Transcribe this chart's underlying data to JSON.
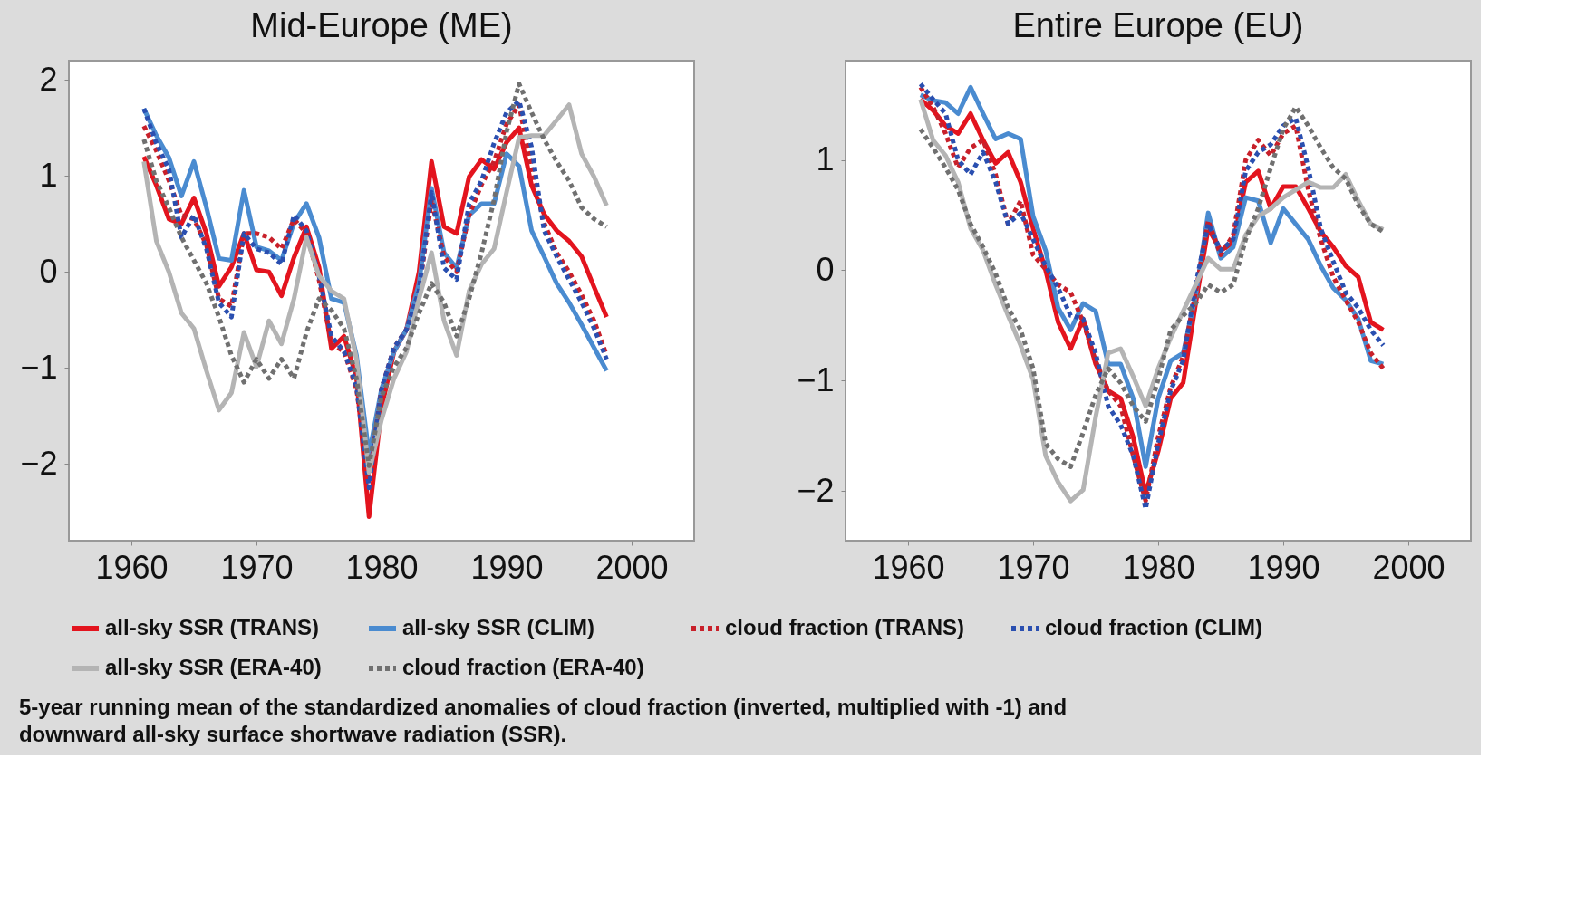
{
  "chart_data": [
    {
      "type": "line",
      "title": "Mid-Europe (ME)",
      "x": [
        1961,
        1962,
        1963,
        1964,
        1965,
        1966,
        1967,
        1968,
        1969,
        1970,
        1971,
        1972,
        1973,
        1974,
        1975,
        1976,
        1977,
        1978,
        1979,
        1980,
        1981,
        1982,
        1983,
        1984,
        1985,
        1986,
        1987,
        1988,
        1989,
        1990,
        1991,
        1992,
        1993,
        1994,
        1995,
        1996,
        1997,
        1998
      ],
      "series": [
        {
          "name": "all-sky SSR (TRANS)",
          "color": "#e3141e",
          "line_style": "solid",
          "values": [
            1.2,
            0.9,
            0.55,
            0.5,
            0.77,
            0.4,
            -0.15,
            0.05,
            0.4,
            0.02,
            0,
            -0.25,
            0.15,
            0.47,
            0.05,
            -0.8,
            -0.67,
            -1.1,
            -2.55,
            -1.42,
            -0.83,
            -0.6,
            0,
            1.15,
            0.47,
            0.4,
            0.99,
            1.17,
            1.07,
            1.35,
            1.5,
            0.9,
            0.6,
            0.43,
            0.32,
            0.16,
            -0.16,
            -0.47
          ]
        },
        {
          "name": "all-sky SSR (CLIM)",
          "color": "#4a8bd0",
          "line_style": "solid",
          "values": [
            1.7,
            1.42,
            1.19,
            0.79,
            1.15,
            0.67,
            0.14,
            0.12,
            0.85,
            0.26,
            0.22,
            0.12,
            0.51,
            0.71,
            0.36,
            -0.28,
            -0.32,
            -0.87,
            -1.9,
            -1.22,
            -0.83,
            -0.6,
            -0.12,
            0.87,
            0.2,
            0.04,
            0.59,
            0.71,
            0.71,
            1.23,
            1.1,
            0.43,
            0.16,
            -0.12,
            -0.32,
            -0.55,
            -0.79,
            -1.03
          ]
        },
        {
          "name": "cloud fraction (TRANS)",
          "color": "#c8202a",
          "line_style": "dotted",
          "values": [
            1.52,
            1.26,
            0.95,
            0.59,
            0.55,
            0.28,
            -0.28,
            -0.36,
            0.4,
            0.4,
            0.36,
            0.24,
            0.55,
            0.4,
            -0.08,
            -0.75,
            -0.83,
            -1.22,
            -2.17,
            -1.22,
            -0.79,
            -0.6,
            -0.2,
            0.75,
            0.16,
            0,
            0.59,
            0.91,
            1.15,
            1.54,
            1.74,
            1.07,
            0.51,
            0.2,
            0,
            -0.24,
            -0.51,
            -0.87
          ]
        },
        {
          "name": "cloud fraction (CLIM)",
          "color": "#2a4fb0",
          "line_style": "dotted",
          "values": [
            1.7,
            1.34,
            1.07,
            0.36,
            0.59,
            0.24,
            -0.32,
            -0.47,
            0.4,
            0.24,
            0.2,
            0.08,
            0.59,
            0.43,
            -0.04,
            -0.67,
            -0.83,
            -1.19,
            -2.25,
            -1.22,
            -0.79,
            -0.6,
            -0.2,
            0.83,
            0.04,
            -0.08,
            0.71,
            0.95,
            1.34,
            1.66,
            1.78,
            1.3,
            0.43,
            0.16,
            -0.08,
            -0.32,
            -0.59,
            -0.91
          ]
        },
        {
          "name": "all-sky SSR (ERA-40)",
          "color": "#b4b4b4",
          "line_style": "solid",
          "values": [
            1.15,
            0.32,
            0,
            -0.43,
            -0.59,
            -1.03,
            -1.44,
            -1.26,
            -0.63,
            -0.99,
            -0.51,
            -0.75,
            -0.28,
            0.36,
            -0.04,
            -0.2,
            -0.28,
            -0.91,
            -2.09,
            -1.54,
            -1.11,
            -0.83,
            -0.28,
            0.2,
            -0.51,
            -0.87,
            -0.2,
            0.08,
            0.24,
            0.83,
            1.4,
            1.42,
            1.42,
            1.58,
            1.74,
            1.23,
            0.99,
            0.69
          ]
        },
        {
          "name": "cloud fraction (ERA-40)",
          "color": "#707070",
          "line_style": "dotted",
          "values": [
            1.38,
            0.95,
            0.67,
            0.36,
            0.12,
            -0.12,
            -0.47,
            -0.87,
            -1.15,
            -0.91,
            -1.11,
            -0.91,
            -1.11,
            -0.63,
            -0.28,
            -0.4,
            -0.59,
            -1.11,
            -2.02,
            -1.3,
            -0.99,
            -0.79,
            -0.43,
            -0.12,
            -0.32,
            -0.67,
            -0.28,
            0.2,
            0.75,
            1.46,
            1.96,
            1.66,
            1.38,
            1.15,
            0.95,
            0.67,
            0.55,
            0.47
          ]
        }
      ],
      "xlim": [
        1955,
        2005
      ],
      "ylim": [
        -2.8,
        2.2
      ],
      "xticks": [
        1960,
        1970,
        1980,
        1990,
        2000
      ],
      "yticks": [
        -2,
        -1,
        0,
        1,
        2
      ],
      "legend": "bottom",
      "annotations": [
        "5-year running mean of the standardized anomalies of cloud fraction (inverted, multiplied with -1) and",
        "downward all-sky surface shortwave radiation (SSR)."
      ]
    },
    {
      "type": "line",
      "title": "Entire Europe (EU)",
      "x": [
        1961,
        1962,
        1963,
        1964,
        1965,
        1966,
        1967,
        1968,
        1969,
        1970,
        1971,
        1972,
        1973,
        1974,
        1975,
        1976,
        1977,
        1978,
        1979,
        1980,
        1981,
        1982,
        1983,
        1984,
        1985,
        1986,
        1987,
        1988,
        1989,
        1990,
        1991,
        1992,
        1993,
        1994,
        1995,
        1996,
        1997,
        1998
      ],
      "series": [
        {
          "color": "#e3141e",
          "line_style": "solid",
          "values": [
            1.55,
            1.45,
            1.31,
            1.24,
            1.42,
            1.18,
            0.97,
            1.07,
            0.8,
            0.38,
            0,
            -0.47,
            -0.71,
            -0.44,
            -0.85,
            -1.09,
            -1.16,
            -1.51,
            -2.02,
            -1.64,
            -1.16,
            -1.02,
            -0.3,
            0.38,
            0.18,
            0.25,
            0.8,
            0.9,
            0.56,
            0.76,
            0.76,
            0.56,
            0.35,
            0.21,
            0.04,
            -0.06,
            -0.47,
            -0.54
          ]
        },
        {
          "color": "#4a8bd0",
          "line_style": "solid",
          "values": [
            1.59,
            1.54,
            1.52,
            1.42,
            1.66,
            1.42,
            1.19,
            1.24,
            1.19,
            0.49,
            0.18,
            -0.34,
            -0.54,
            -0.3,
            -0.37,
            -0.85,
            -0.85,
            -1.16,
            -1.78,
            -1.16,
            -0.82,
            -0.75,
            -0.23,
            0.52,
            0.11,
            0.21,
            0.66,
            0.63,
            0.25,
            0.56,
            0.42,
            0.28,
            0.04,
            -0.16,
            -0.27,
            -0.44,
            -0.82,
            -0.85
          ]
        },
        {
          "color": "#c8202a",
          "line_style": "dotted",
          "values": [
            1.66,
            1.48,
            1.24,
            0.93,
            1.11,
            1.18,
            0.87,
            0.42,
            0.63,
            0.14,
            0.01,
            -0.13,
            -0.2,
            -0.47,
            -0.82,
            -1.09,
            -1.23,
            -1.68,
            -2.09,
            -1.51,
            -1.06,
            -0.78,
            -0.2,
            0.45,
            0.14,
            0.32,
            1.0,
            1.18,
            1.04,
            1.24,
            1.31,
            0.73,
            0.28,
            -0.06,
            -0.27,
            -0.47,
            -0.75,
            -0.89
          ]
        },
        {
          "color": "#2a4fb0",
          "line_style": "dotted",
          "values": [
            1.69,
            1.55,
            1.42,
            1.0,
            0.87,
            1.07,
            0.8,
            0.42,
            0.52,
            0.28,
            0.04,
            -0.16,
            -0.41,
            -0.44,
            -0.75,
            -1.23,
            -1.4,
            -1.68,
            -2.16,
            -1.57,
            -1.09,
            -0.82,
            -0.13,
            0.42,
            0.18,
            0.28,
            0.9,
            1.07,
            1.14,
            1.31,
            1.38,
            0.93,
            0.38,
            0.08,
            -0.2,
            -0.34,
            -0.54,
            -0.68
          ]
        },
        {
          "color": "#b4b4b4",
          "line_style": "solid",
          "values": [
            1.55,
            1.18,
            1.04,
            0.8,
            0.38,
            0.18,
            -0.13,
            -0.41,
            -0.68,
            -0.99,
            -1.68,
            -1.92,
            -2.09,
            -1.99,
            -1.33,
            -0.75,
            -0.71,
            -0.96,
            -1.23,
            -0.89,
            -0.61,
            -0.37,
            -0.13,
            0.11,
            0.01,
            0.01,
            0.32,
            0.49,
            0.56,
            0.66,
            0.73,
            0.8,
            0.75,
            0.75,
            0.87,
            0.63,
            0.42,
            0.37
          ]
        },
        {
          "color": "#707070",
          "line_style": "dotted",
          "values": [
            1.28,
            1.11,
            0.93,
            0.73,
            0.42,
            0.21,
            -0.03,
            -0.34,
            -0.54,
            -0.89,
            -1.57,
            -1.71,
            -1.78,
            -1.47,
            -1.13,
            -0.89,
            -1.02,
            -1.23,
            -1.37,
            -0.99,
            -0.54,
            -0.41,
            -0.3,
            -0.13,
            -0.2,
            -0.13,
            0.28,
            0.56,
            0.93,
            1.28,
            1.48,
            1.31,
            1.11,
            0.93,
            0.83,
            0.59,
            0.42,
            0.35
          ]
        }
      ],
      "xlim": [
        1955,
        2005
      ],
      "ylim": [
        -2.45,
        1.9
      ],
      "xticks": [
        1960,
        1970,
        1980,
        1990,
        2000
      ],
      "yticks": [
        -2,
        -1,
        0,
        1
      ]
    }
  ]
}
